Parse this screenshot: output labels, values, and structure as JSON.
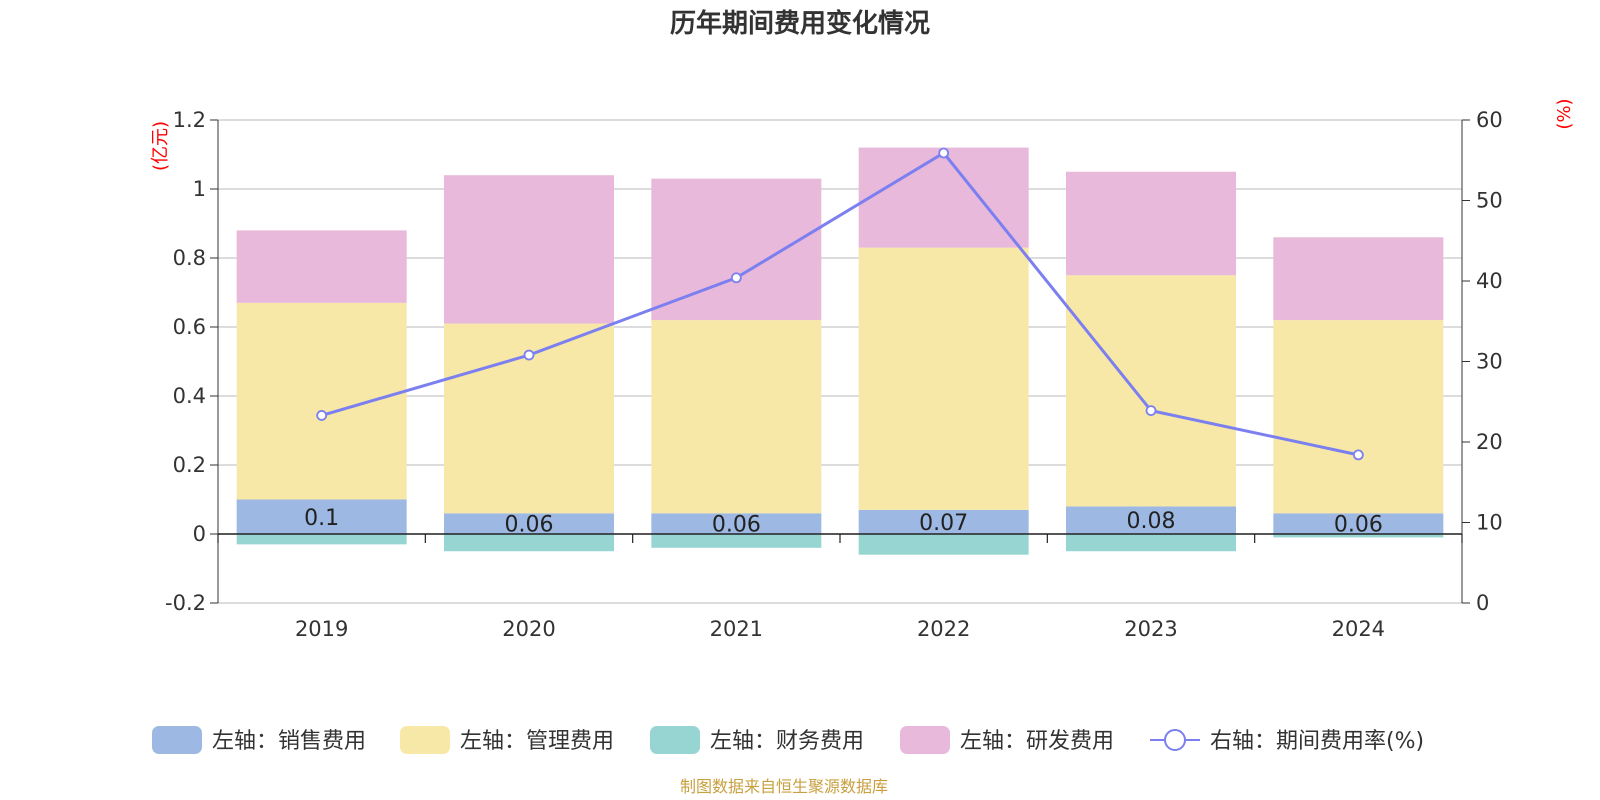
{
  "chart_data": {
    "type": "bar",
    "title": "历年期间费用变化情况",
    "categories": [
      "2019",
      "2020",
      "2021",
      "2022",
      "2023",
      "2024"
    ],
    "y_left": {
      "unit": "(亿元)",
      "min": -0.2,
      "max": 1.2,
      "ticks": [
        "-0.2",
        "0",
        "0.2",
        "0.4",
        "0.6",
        "0.8",
        "1",
        "1.2"
      ]
    },
    "y_right": {
      "unit": "(%)",
      "min": 0,
      "max": 60,
      "ticks": [
        "0",
        "10",
        "20",
        "30",
        "40",
        "50",
        "60"
      ]
    },
    "stacked": true,
    "series": [
      {
        "name": "左轴：销售费用",
        "axis": "left",
        "color": "#9db8e2",
        "values": [
          0.1,
          0.06,
          0.06,
          0.07,
          0.08,
          0.06
        ],
        "labels": [
          "0.1",
          "0.06",
          "0.06",
          "0.07",
          "0.08",
          "0.06"
        ]
      },
      {
        "name": "左轴：管理费用",
        "axis": "left",
        "color": "#f8e8a8",
        "values": [
          0.57,
          0.55,
          0.56,
          0.76,
          0.67,
          0.56
        ]
      },
      {
        "name": "左轴：财务费用",
        "axis": "left",
        "color": "#97d5d3",
        "values": [
          -0.03,
          -0.05,
          -0.04,
          -0.06,
          -0.05,
          -0.01
        ]
      },
      {
        "name": "左轴：研发费用",
        "axis": "left",
        "color": "#e8b9da",
        "values": [
          0.21,
          0.43,
          0.41,
          0.29,
          0.3,
          0.24
        ]
      },
      {
        "name": "右轴：期间费用率(%)",
        "axis": "right",
        "type": "line",
        "color": "#7b7ff0",
        "values": [
          23.3,
          30.8,
          40.4,
          55.9,
          23.9,
          18.4
        ]
      }
    ],
    "grid": true,
    "legend_position": "bottom"
  },
  "source_note": "制图数据来自恒生聚源数据库"
}
